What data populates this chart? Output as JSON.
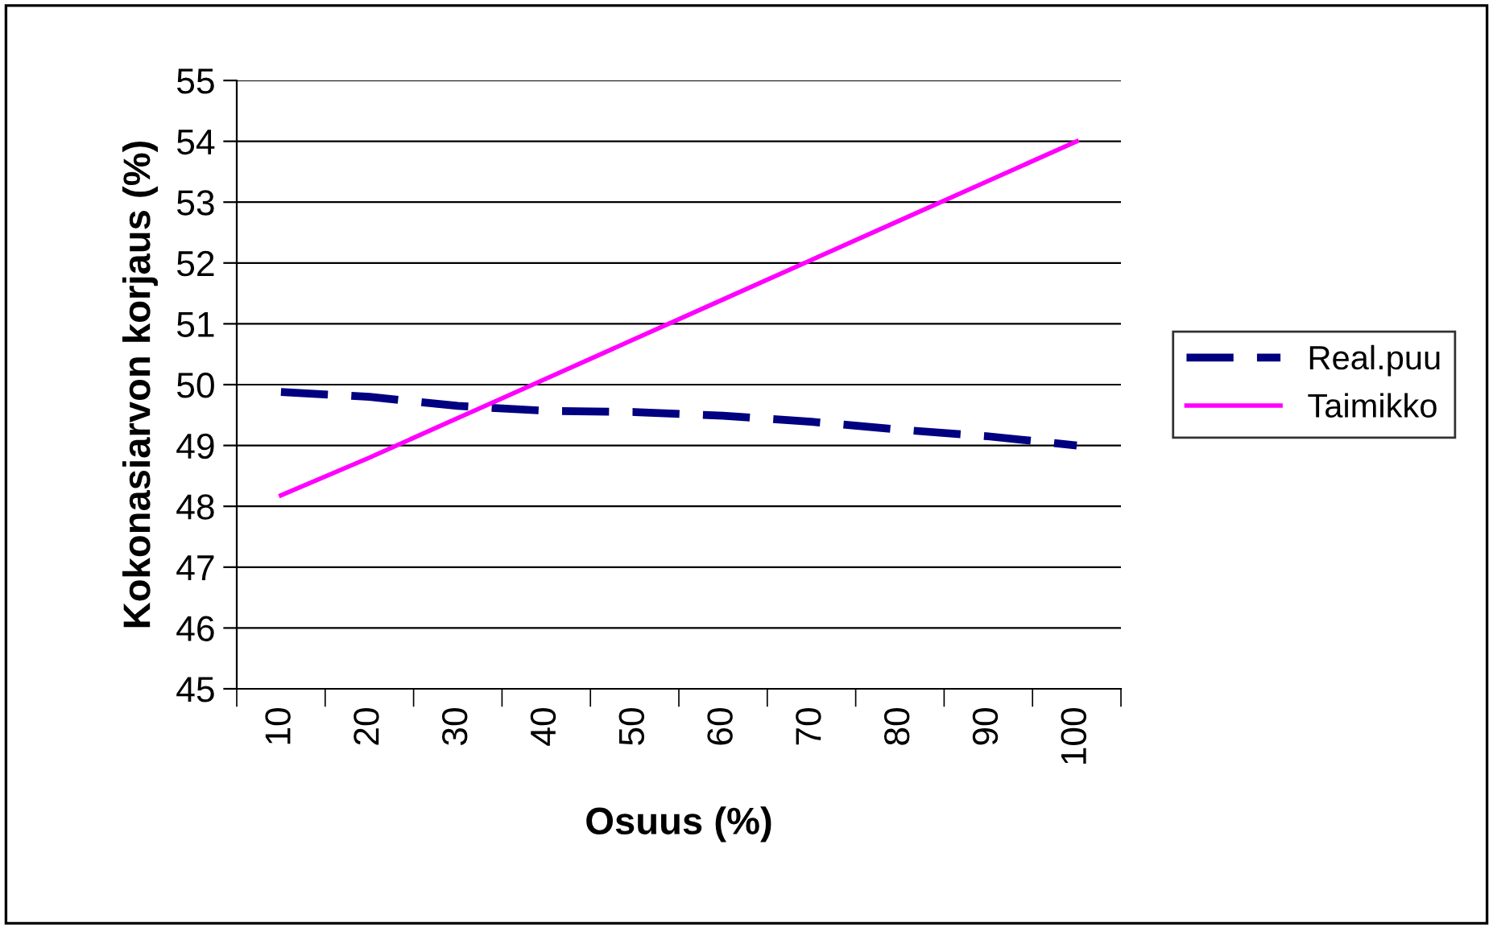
{
  "chart_data": {
    "type": "line",
    "xlabel": "Osuus (%)",
    "ylabel": "Kokonasiarvon korjaus (%)",
    "categories": [
      "10",
      "20",
      "30",
      "40",
      "50",
      "60",
      "70",
      "80",
      "90",
      "100"
    ],
    "series": [
      {
        "name": "Real.puu",
        "color": "#000080",
        "line_style": "dashed",
        "values": [
          49.88,
          49.8,
          49.65,
          49.57,
          49.55,
          49.49,
          49.39,
          49.26,
          49.15,
          49.0
        ]
      },
      {
        "name": "Taimikko",
        "color": "#ff00ff",
        "line_style": "solid",
        "values": [
          48.18,
          48.8,
          49.45,
          50.1,
          50.75,
          51.4,
          52.05,
          52.7,
          53.35,
          54.0
        ]
      }
    ],
    "ylim": [
      45,
      55
    ],
    "yticks": [
      45,
      46,
      47,
      48,
      49,
      50,
      51,
      52,
      53,
      54,
      55
    ],
    "grid": "y",
    "legend": "right",
    "marker": "none"
  }
}
